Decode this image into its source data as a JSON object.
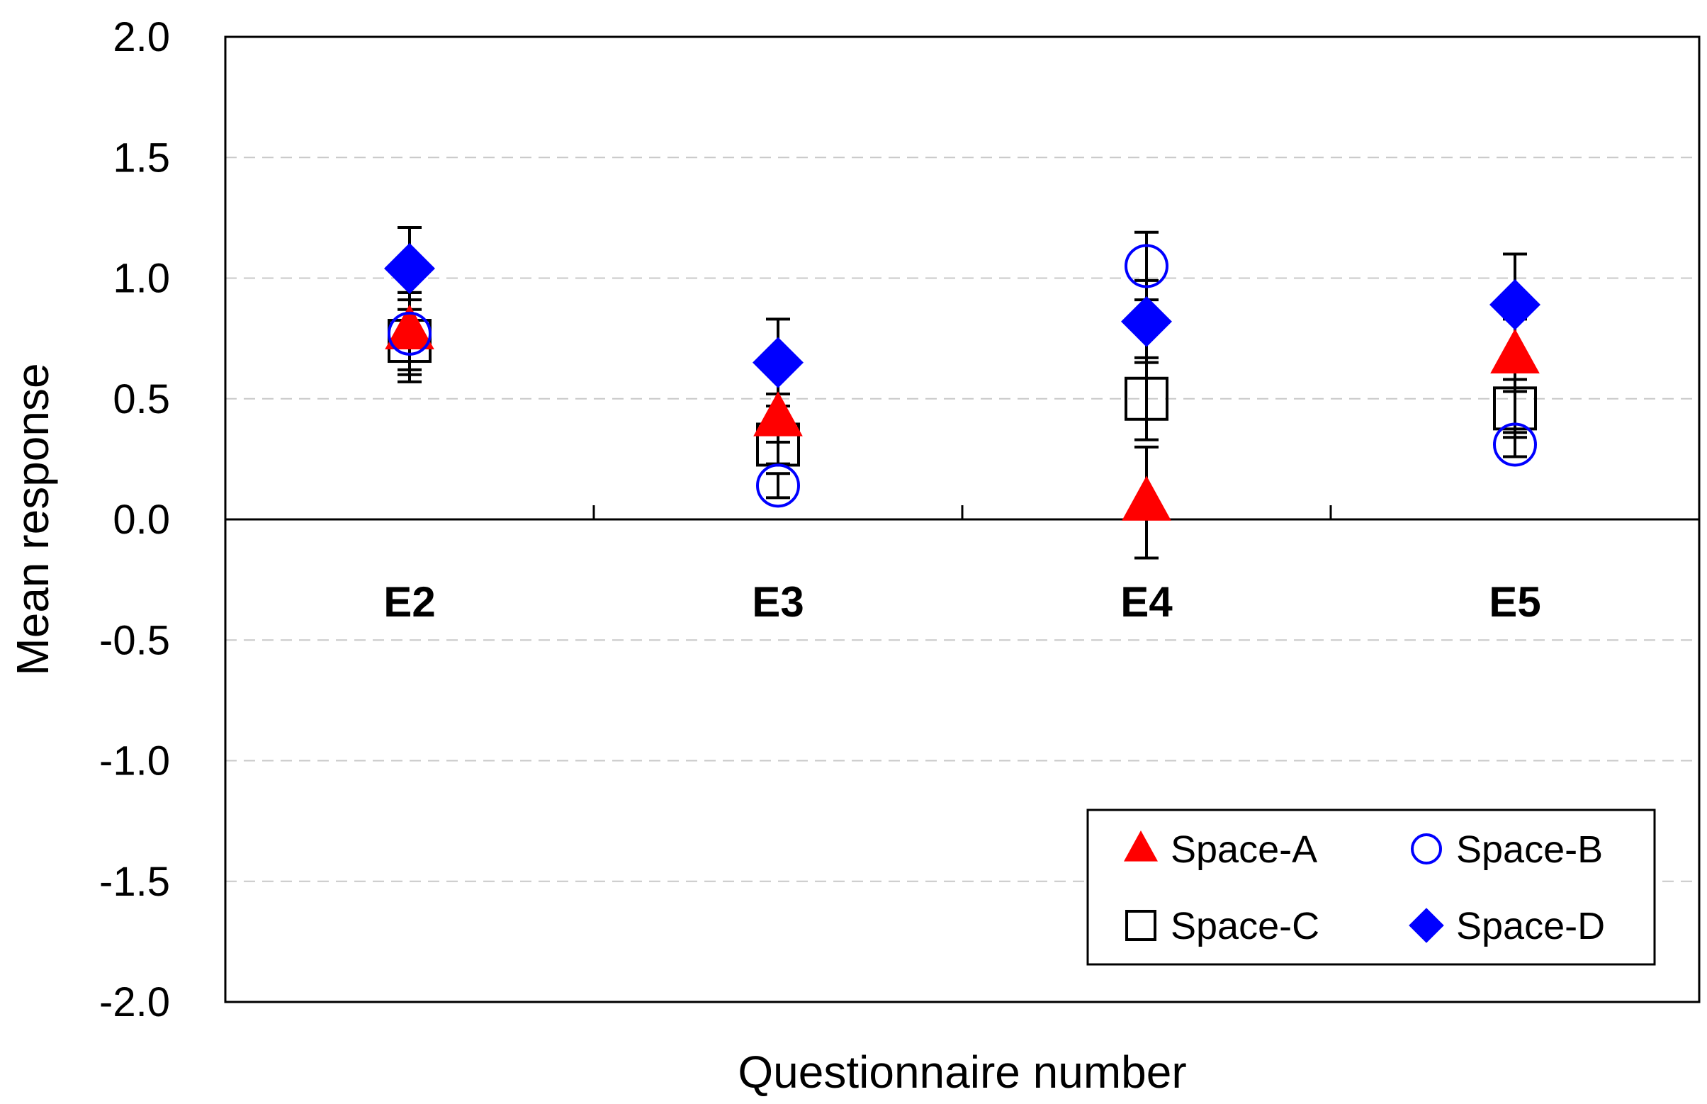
{
  "chart_data": {
    "type": "scatter",
    "title": "",
    "xlabel": "Questionnaire number",
    "ylabel": "Mean response",
    "ylim": [
      -2.0,
      2.0
    ],
    "yticks": [
      "2.0",
      "1.5",
      "1.0",
      "0.5",
      "0.0",
      "-0.5",
      "-1.0",
      "-1.5",
      "-2.0"
    ],
    "categories": [
      "E2",
      "E3",
      "E4",
      "E5"
    ],
    "grid": "horizontal dashed",
    "legend_position": "bottom-right",
    "series": [
      {
        "name": "Space-A",
        "marker": "triangle",
        "color": "#ff0000",
        "filled": true,
        "values": [
          0.78,
          0.42,
          0.07,
          0.68
        ],
        "errors": [
          0.16,
          0.1,
          0.23,
          0.15
        ]
      },
      {
        "name": "Space-B",
        "marker": "circle",
        "color": "#0000ff",
        "filled": false,
        "values": [
          0.77,
          0.14,
          1.05,
          0.31
        ],
        "errors": [
          0.17,
          0.05,
          0.14,
          0.05
        ]
      },
      {
        "name": "Space-C",
        "marker": "square",
        "color": "#000000",
        "filled": false,
        "values": [
          0.74,
          0.31,
          0.5,
          0.46
        ],
        "errors": [
          0.17,
          0.08,
          0.17,
          0.12
        ]
      },
      {
        "name": "Space-D",
        "marker": "diamond",
        "color": "#0000ff",
        "filled": true,
        "values": [
          1.04,
          0.65,
          0.82,
          0.89
        ],
        "errors": [
          0.17,
          0.18,
          0.17,
          0.21
        ]
      }
    ]
  }
}
